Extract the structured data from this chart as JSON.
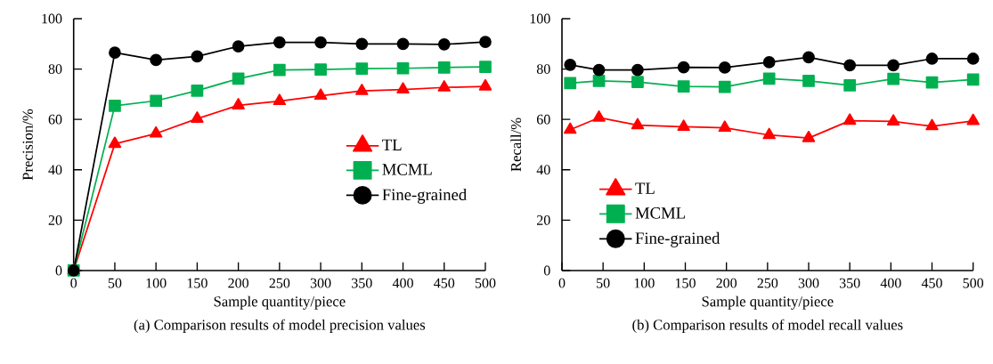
{
  "chart_data": [
    {
      "type": "line",
      "title": "(a) Comparison results of model precision values",
      "xlabel": "Sample quantity/piece",
      "ylabel": "Precision/%",
      "x": [
        0,
        50,
        100,
        150,
        200,
        250,
        300,
        350,
        400,
        450,
        500
      ],
      "series": [
        {
          "name": "TL",
          "color": "#ff0000",
          "marker": "triangle",
          "values": [
            0,
            50.3,
            54.4,
            60.3,
            65.6,
            67.3,
            69.4,
            71.3,
            71.9,
            72.7,
            73.1
          ]
        },
        {
          "name": "MCML",
          "color": "#00b050",
          "marker": "square",
          "values": [
            0,
            65.4,
            67.4,
            71.4,
            76.2,
            79.6,
            79.8,
            80.2,
            80.3,
            80.6,
            80.9
          ]
        },
        {
          "name": "Fine-grained",
          "color": "#000000",
          "marker": "circle",
          "values": [
            0,
            86.5,
            83.6,
            85,
            89,
            90.6,
            90.6,
            90,
            90,
            89.8,
            90.8
          ]
        }
      ],
      "xlim": [
        0,
        500
      ],
      "ylim": [
        0,
        100
      ],
      "xticks": [
        0,
        50,
        100,
        150,
        200,
        250,
        300,
        350,
        400,
        450,
        500
      ],
      "yticks": [
        0,
        20,
        40,
        60,
        80,
        100
      ],
      "legend": "center right",
      "line_style": "solid"
    },
    {
      "type": "line",
      "title": "(b) Comparison results of model recall values",
      "xlabel": "Sample quantity/piece",
      "ylabel": "Recall/%",
      "x": [
        10,
        45,
        92,
        148,
        198,
        252,
        300,
        350,
        403,
        450,
        500
      ],
      "series": [
        {
          "name": "TL",
          "color": "#ff0000",
          "marker": "triangle",
          "values": [
            55.9,
            60.7,
            57.7,
            57.1,
            56.7,
            53.8,
            52.6,
            59.5,
            59.2,
            57.3,
            59.4
          ]
        },
        {
          "name": "MCML",
          "color": "#00b050",
          "marker": "square",
          "values": [
            74.4,
            75.3,
            74.9,
            73.1,
            72.9,
            76.2,
            75.3,
            73.5,
            76.1,
            74.7,
            75.8
          ]
        },
        {
          "name": "Fine-grained",
          "color": "#000000",
          "marker": "circle",
          "values": [
            81.7,
            79.6,
            79.6,
            80.7,
            80.6,
            82.7,
            84.7,
            81.5,
            81.5,
            84.1,
            84.1
          ]
        }
      ],
      "xlim": [
        0,
        500
      ],
      "ylim": [
        0,
        100
      ],
      "xticks": [
        0,
        50,
        100,
        150,
        200,
        250,
        300,
        350,
        400,
        450,
        500
      ],
      "yticks": [
        0,
        20,
        40,
        60,
        80,
        100
      ],
      "legend": "bottom left",
      "line_style": "solid"
    }
  ]
}
